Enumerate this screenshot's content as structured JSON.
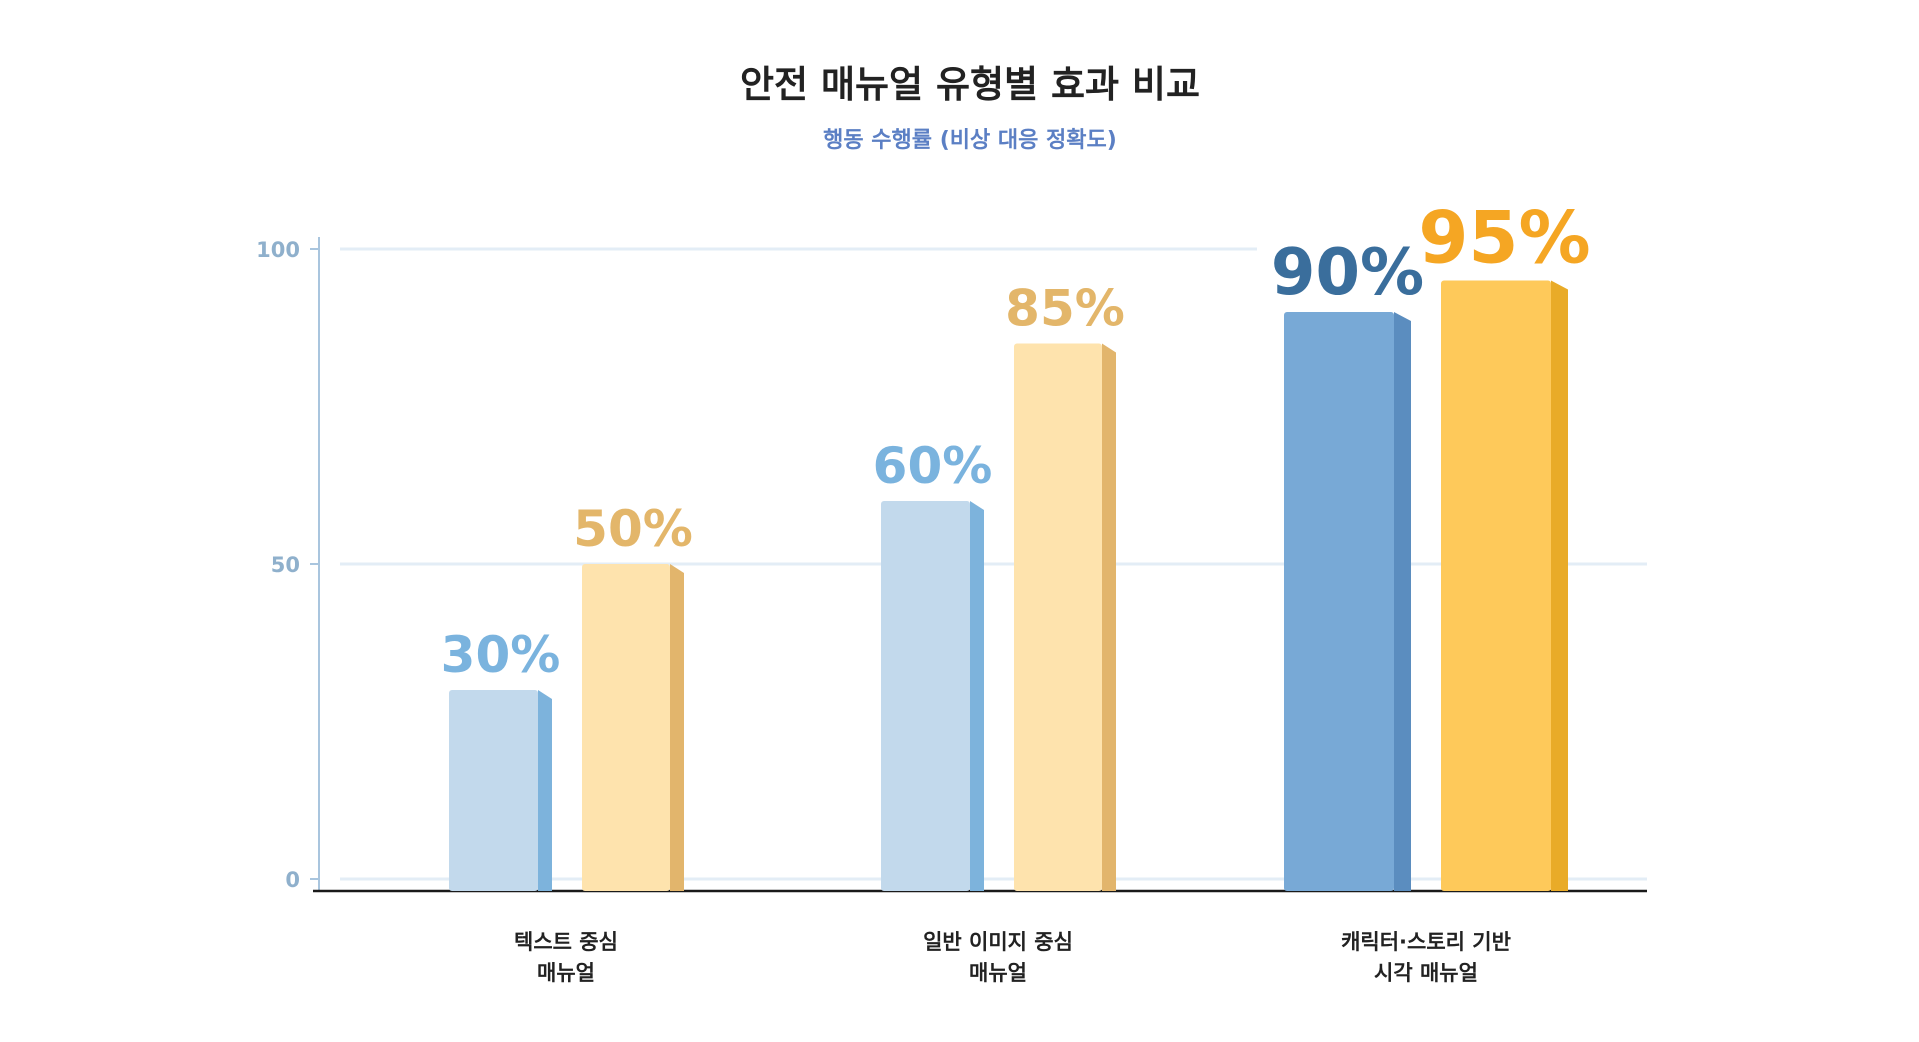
{
  "chart_data": {
    "type": "bar",
    "title": "안전 매뉴얼 유형별 효과 비교",
    "subtitle": "행동 수행률 (비상 대응 정확도)",
    "xlabel": "",
    "ylabel": "",
    "ylim": [
      0,
      100
    ],
    "yticks": [
      "0",
      "50",
      "100"
    ],
    "grid": true,
    "categories": [
      {
        "lines": [
          "텍스트 중심",
          "매뉴얼"
        ],
        "highlight": false
      },
      {
        "lines": [
          "일반 이미지 중심",
          "매뉴얼"
        ],
        "highlight": true
      },
      {
        "lines": [
          "캐릭터·스토리 기반",
          "시각 매뉴얼"
        ],
        "highlight": true
      }
    ],
    "series": [
      {
        "name": "series-blue",
        "values": [
          30,
          60,
          90
        ],
        "labels": [
          "30%",
          "60%",
          "90%"
        ]
      },
      {
        "name": "series-gold",
        "values": [
          50,
          85,
          95
        ],
        "labels": [
          "50%",
          "85%",
          "95%"
        ]
      }
    ],
    "colors": {
      "blue_front": [
        "#c2d9ec",
        "#c2d9ec",
        "#78a9d6"
      ],
      "blue_side": [
        "#7db3dc",
        "#7db3dc",
        "#5b8dbf"
      ],
      "blue_label": [
        "#7ab3de",
        "#7ab3de",
        "#3a6e9c"
      ],
      "gold_front": [
        "#fee3ad",
        "#fee3ad",
        "#fec95a"
      ],
      "gold_side": [
        "#e2b56c",
        "#e2b56c",
        "#e9ab28"
      ],
      "gold_label": [
        "#e3b66a",
        "#e3b66a",
        "#f5a623"
      ],
      "category_highlight": "#1f4fa8",
      "category_normal": "#222222"
    }
  }
}
